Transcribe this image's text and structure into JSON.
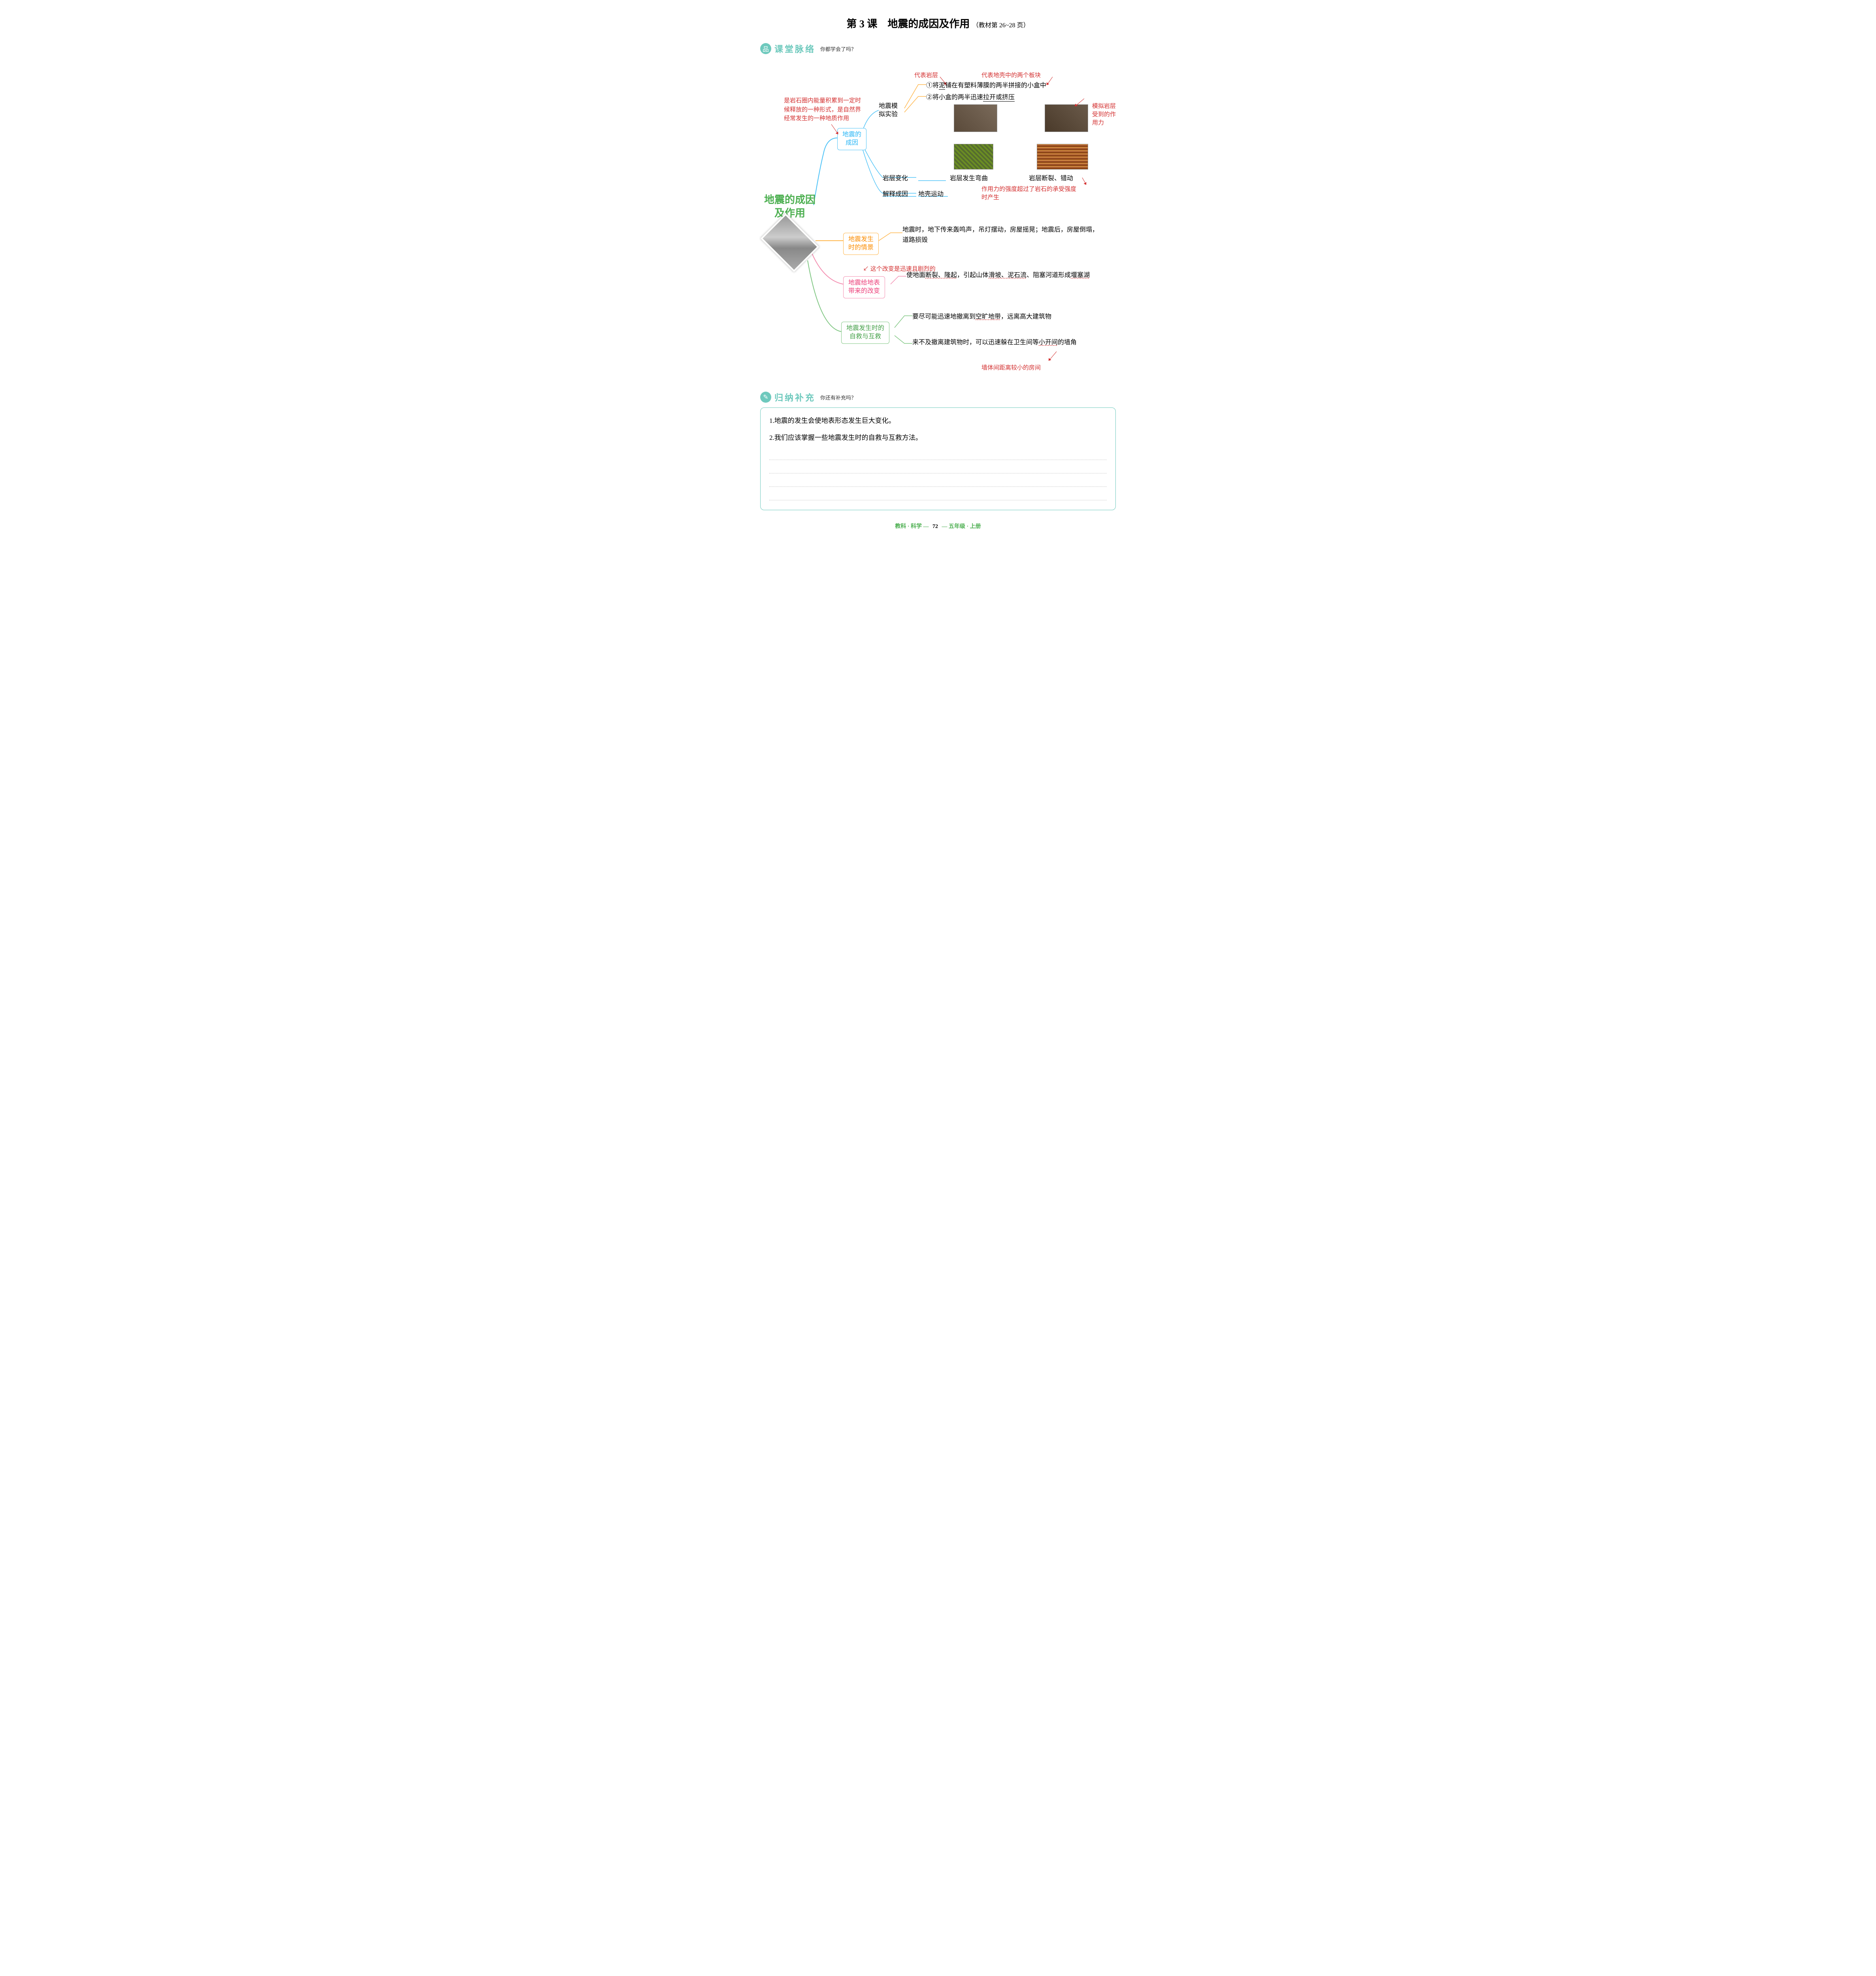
{
  "header": {
    "lesson_label": "第 3 课",
    "title": "地震的成因及作用",
    "page_ref": "（教材第 26~28 页）"
  },
  "sections": {
    "mindmap_title": "课堂脉络",
    "mindmap_prompt": "你都学会了吗？",
    "summary_title": "归纳补充",
    "summary_prompt": "你还有补充吗？"
  },
  "root": {
    "title_line1": "地震的成因",
    "title_line2": "及作用"
  },
  "branch1": {
    "label": "地震的\n成因",
    "annotation": "是岩石圈内能量积累到一定时候释放的一种形式，是自然界经常发生的一种地质作用",
    "sub1_label": "地震模\n拟实验",
    "step1_prefix": "①将",
    "step1_mud": "泥",
    "step1_rest": "铺在有塑料薄膜的两半拼接的小盒中",
    "step1_note_left": "代表岩层",
    "step1_note_right": "代表地壳中的两个板块",
    "step2_prefix": "②将小盒的两半迅速",
    "step2_action": "拉开或挤压",
    "step2_note": "模拟岩层受到的作用力",
    "sub2_label": "岩层变化",
    "sub2_text1": "岩层发生弯曲",
    "sub2_text2": "岩层断裂、错动",
    "sub3_label": "解释成因",
    "sub3_text": "地壳运动",
    "sub3_note": "作用力的强度超过了岩石的承受强度时产生"
  },
  "branch2": {
    "label": "地震发生\n时的情景",
    "text": "地震时，地下传来轰鸣声，吊灯摆动，房屋摇晃；地震后，房屋倒塌，道路损毁"
  },
  "branch3": {
    "label": "地震给地表\n带来的改变",
    "note": "这个改变是迅速且剧烈的",
    "text_part1": "使地面",
    "text_key1": "断裂、隆起",
    "text_part2": "，引起山体",
    "text_key2": "滑坡、泥石流",
    "text_part3": "、阻塞河道形成",
    "text_key3": "堰塞湖"
  },
  "branch4": {
    "label": "地震发生时的\n自救与互救",
    "text1_part1": "要尽可能迅速地撤离到",
    "text1_key": "空旷地带",
    "text1_part2": "，远离高大建筑物",
    "text2_part1": "来不及撤离建筑物时，可以迅速躲在卫生间等",
    "text2_key": "小开间",
    "text2_part2": "的墙角",
    "text2_note": "墙体间距离较小的房间"
  },
  "summary": {
    "item1": "1.地震的发生会使地表形态发生巨大变化。",
    "item2": "2.我们应该掌握一些地震发生时的自救与互救方法。"
  },
  "footer": {
    "left": "教科 · 科学",
    "page": "72",
    "right": "五年级 · 上册"
  },
  "colors": {
    "teal": "#6ec9bd",
    "blue": "#4fc3f7",
    "orange": "#ffb74d",
    "pink": "#f48fb1",
    "green": "#81c784",
    "red_note": "#d32f2f"
  }
}
